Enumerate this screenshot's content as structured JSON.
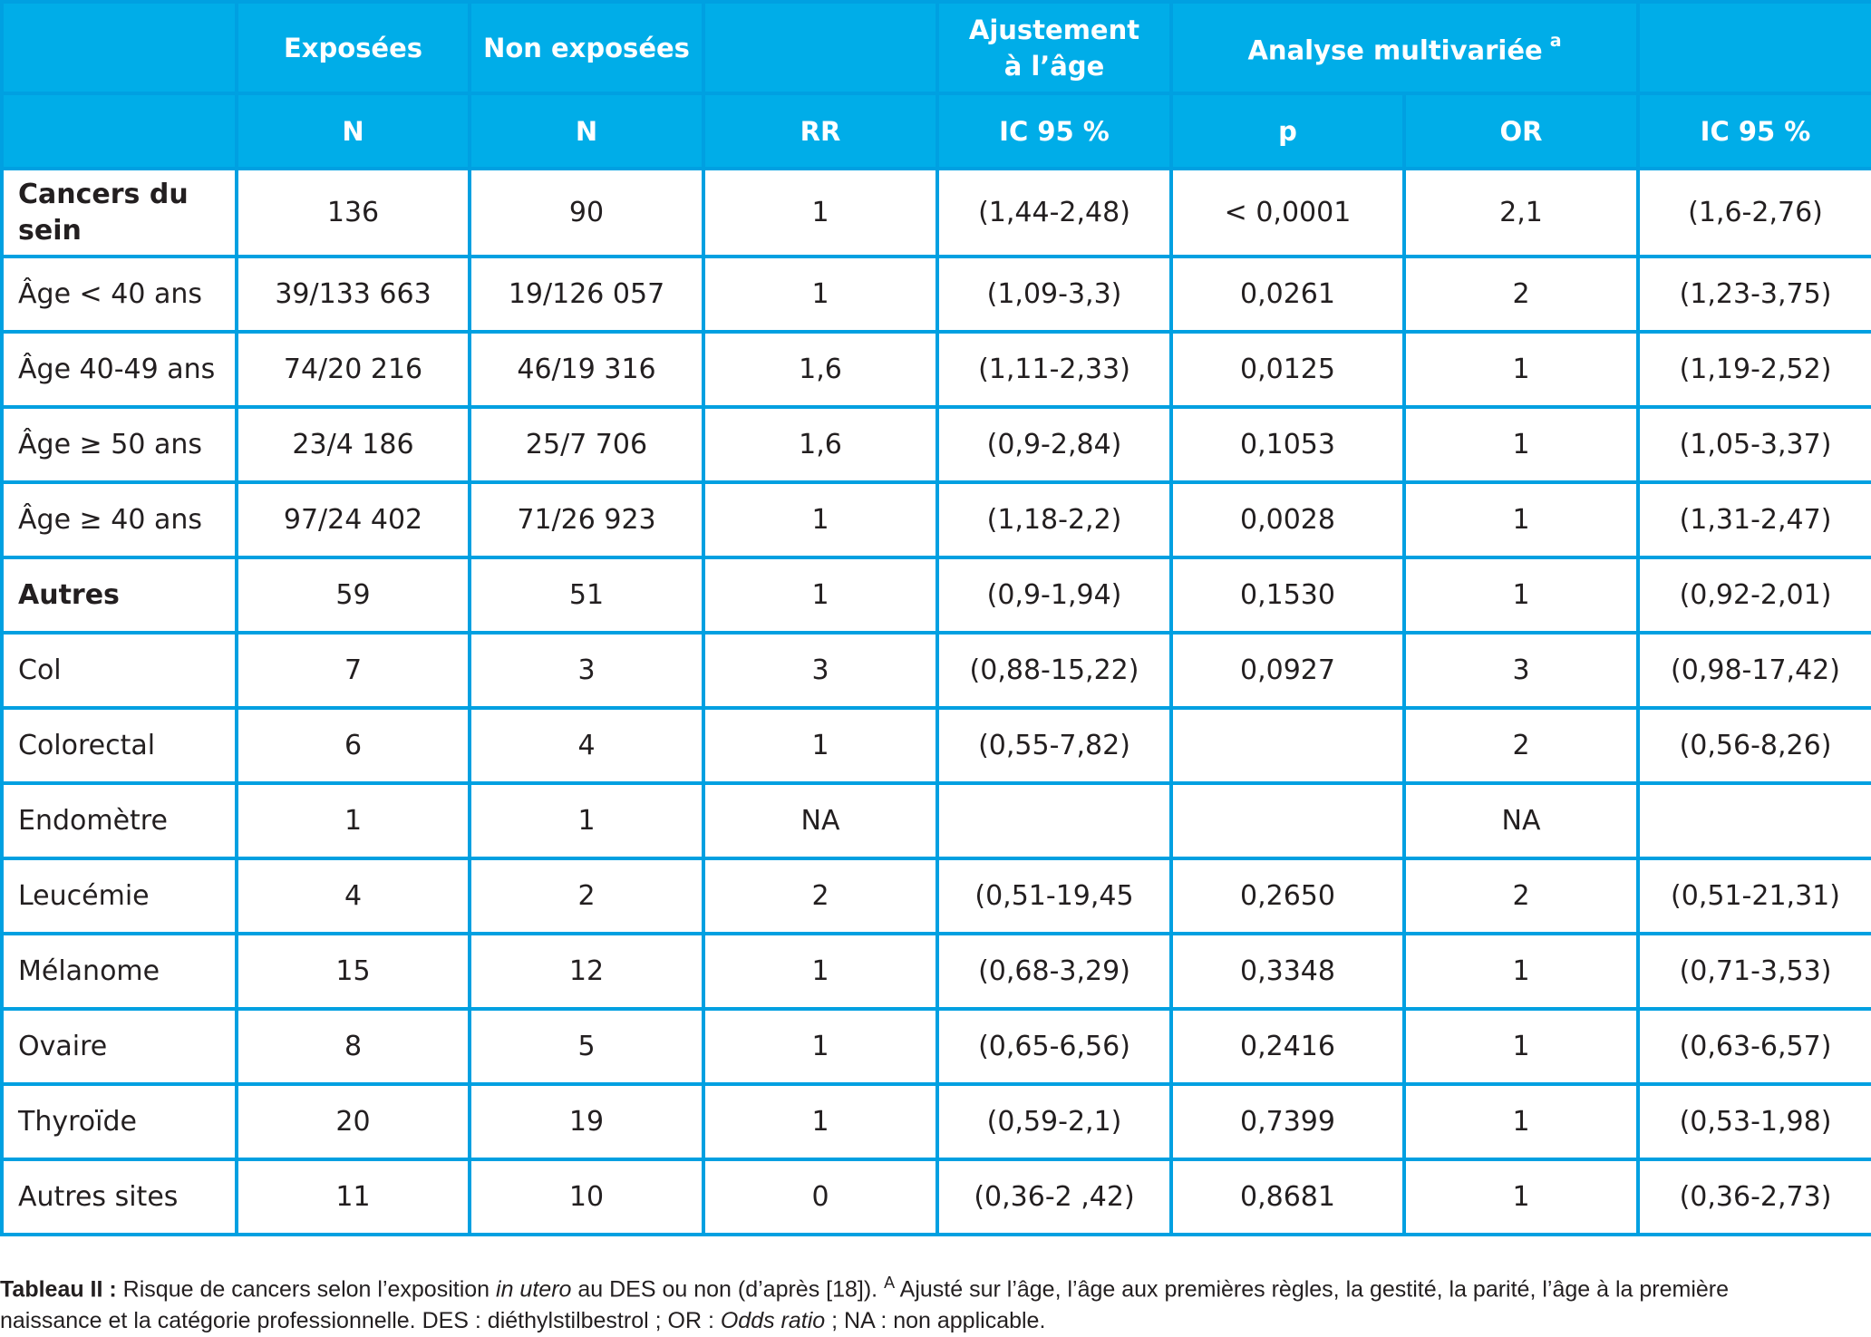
{
  "table": {
    "header_row1": {
      "col0": "",
      "col1": "Exposées",
      "col2": "Non exposées",
      "col3": "",
      "col4_line1": "Ajustement",
      "col4_line2": "à l’âge",
      "col5": "Analyse multivariée",
      "col5_sup": "a",
      "col7": ""
    },
    "header_row2": [
      "",
      "N",
      "N",
      "RR",
      "IC 95 %",
      "p",
      "OR",
      "IC 95 %"
    ],
    "rows": [
      {
        "cells": [
          "Cancers du sein",
          "136",
          "90",
          "1",
          "(1,44-2,48)",
          "< 0,0001",
          "2,1",
          "(1,6-2,76)"
        ],
        "bold": true
      },
      {
        "cells": [
          "Âge < 40 ans",
          "39/133 663",
          "19/126 057",
          "1",
          "(1,09-3,3)",
          "0,0261",
          "2",
          "(1,23-3,75)"
        ],
        "bold": false
      },
      {
        "cells": [
          "Âge 40-49 ans",
          "74/20 216",
          "46/19 316",
          "1,6",
          "(1,11-2,33)",
          "0,0125",
          "1",
          "(1,19-2,52)"
        ],
        "bold": false
      },
      {
        "cells": [
          "Âge ≥ 50 ans",
          "23/4 186",
          "25/7 706",
          "1,6",
          "(0,9-2,84)",
          "0,1053",
          "1",
          "(1,05-3,37)"
        ],
        "bold": false
      },
      {
        "cells": [
          "Âge ≥ 40 ans",
          "97/24 402",
          "71/26 923",
          "1",
          "(1,18-2,2)",
          "0,0028",
          "1",
          "(1,31-2,47)"
        ],
        "bold": false
      },
      {
        "cells": [
          "Autres",
          "59",
          "51",
          "1",
          "(0,9-1,94)",
          "0,1530",
          "1",
          "(0,92-2,01)"
        ],
        "bold": true
      },
      {
        "cells": [
          "Col",
          "7",
          "3",
          "3",
          "(0,88-15,22)",
          "0,0927",
          "3",
          "(0,98-17,42)"
        ],
        "bold": false
      },
      {
        "cells": [
          "Colorectal",
          "6",
          "4",
          "1",
          "(0,55-7,82)",
          "",
          "2",
          "(0,56-8,26)"
        ],
        "bold": false
      },
      {
        "cells": [
          "Endomètre",
          "1",
          "1",
          "NA",
          "",
          "",
          "NA",
          ""
        ],
        "bold": false
      },
      {
        "cells": [
          "Leucémie",
          "4",
          "2",
          "2",
          "(0,51-19,45",
          "0,2650",
          "2",
          "(0,51-21,31)"
        ],
        "bold": false
      },
      {
        "cells": [
          "Mélanome",
          "15",
          "12",
          "1",
          "(0,68-3,29)",
          "0,3348",
          "1",
          "(0,71-3,53)"
        ],
        "bold": false
      },
      {
        "cells": [
          "Ovaire",
          "8",
          "5",
          "1",
          "(0,65-6,56)",
          "0,2416",
          "1",
          "(0,63-6,57)"
        ],
        "bold": false
      },
      {
        "cells": [
          "Thyroïde",
          "20",
          "19",
          "1",
          "(0,59-2,1)",
          "0,7399",
          "1",
          "(0,53-1,98)"
        ],
        "bold": false
      },
      {
        "cells": [
          "Autres sites",
          "11",
          "10",
          "0",
          "(0,36-2 ,42)",
          "0,8681",
          "1",
          "(0,36-2,73)"
        ],
        "bold": false
      }
    ]
  },
  "caption": {
    "label": "Tableau II :",
    "text1": " Risque de cancers selon l’exposition ",
    "italic1": "in utero",
    "text2": " au DES ou non (d’après [18]). ",
    "sup": "A",
    "text3": " Ajusté sur l’âge, l’âge aux premières règles, la gestité, la parité, l’âge à la première naissance et la catégorie professionnelle. DES : diéthylstilbestrol ; OR : ",
    "italic2": "Odds ratio",
    "text4": " ; NA : non applicable."
  },
  "colors": {
    "header_bg": "#00ade8",
    "border": "#00a0e1",
    "text": "#231f20"
  }
}
